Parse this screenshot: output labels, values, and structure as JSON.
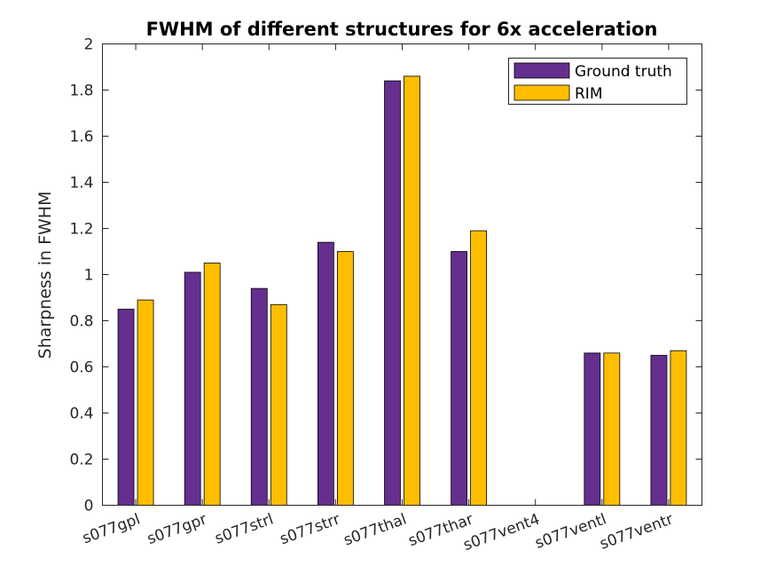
{
  "chart_data": {
    "type": "bar",
    "title": "FWHM of different structures for 6x acceleration",
    "xlabel": "",
    "ylabel": "Sharpness in FWHM",
    "ylim": [
      0,
      2
    ],
    "yticks": [
      0,
      0.2,
      0.4,
      0.6,
      0.8,
      1,
      1.2,
      1.4,
      1.6,
      1.8,
      2
    ],
    "categories": [
      "s077gpl",
      "s077gpr",
      "s077strl",
      "s077strr",
      "s077thal",
      "s077thar",
      "s077vent4",
      "s077ventl",
      "s077ventr"
    ],
    "series": [
      {
        "name": "Ground truth",
        "color": "#652f8f",
        "values": [
          0.85,
          1.01,
          0.94,
          1.14,
          1.84,
          1.1,
          0,
          0.66,
          0.65
        ]
      },
      {
        "name": "RIM",
        "color": "#ffbd00",
        "values": [
          0.89,
          1.05,
          0.87,
          1.1,
          1.86,
          1.19,
          0,
          0.66,
          0.67
        ]
      }
    ],
    "grid": false,
    "legend_position": "top-right"
  }
}
